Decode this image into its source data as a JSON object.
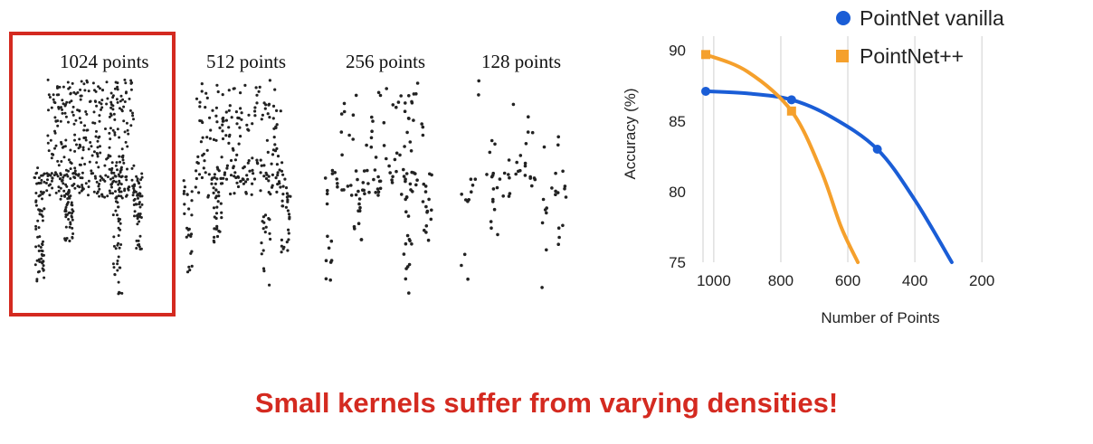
{
  "panels": [
    {
      "label": "1024 points",
      "points": 1024
    },
    {
      "label": "512 points",
      "points": 512
    },
    {
      "label": "256 points",
      "points": 256
    },
    {
      "label": "128 points",
      "points": 128
    }
  ],
  "highlighted_panel": "1024 points",
  "caption": "Small kernels suffer from varying densities!",
  "colors": {
    "highlight": "#d42a20",
    "caption": "#d42a20",
    "vanilla": "#1a5dd6",
    "pp": "#f5a02c"
  },
  "chart_data": {
    "type": "line",
    "xlabel": "Number of Points",
    "ylabel": "Accuracy (%)",
    "xlim": [
      1024,
      160
    ],
    "ylim": [
      75,
      91
    ],
    "x_ticks": [
      1000,
      800,
      600,
      400,
      200
    ],
    "y_ticks": [
      75,
      80,
      85,
      90
    ],
    "grid": "vertical",
    "legend_position": "top-right",
    "series": [
      {
        "name": "PointNet vanilla",
        "marker": "circle",
        "color": "#1a5dd6",
        "points": [
          {
            "x": 1024,
            "y": 87.1
          },
          {
            "x": 768,
            "y": 86.5
          },
          {
            "x": 512,
            "y": 83.0
          }
        ],
        "curve": [
          {
            "x": 1024,
            "y": 87.1
          },
          {
            "x": 900,
            "y": 86.95
          },
          {
            "x": 768,
            "y": 86.5
          },
          {
            "x": 650,
            "y": 85.3
          },
          {
            "x": 512,
            "y": 83.0
          },
          {
            "x": 400,
            "y": 79.4
          },
          {
            "x": 290,
            "y": 75.0
          }
        ]
      },
      {
        "name": "PointNet++",
        "marker": "square",
        "color": "#f5a02c",
        "points": [
          {
            "x": 1024,
            "y": 89.7
          },
          {
            "x": 768,
            "y": 85.7
          }
        ],
        "curve": [
          {
            "x": 1024,
            "y": 89.7
          },
          {
            "x": 900,
            "y": 88.5
          },
          {
            "x": 768,
            "y": 85.7
          },
          {
            "x": 680,
            "y": 81.5
          },
          {
            "x": 620,
            "y": 77.5
          },
          {
            "x": 570,
            "y": 75.0
          }
        ]
      }
    ]
  }
}
